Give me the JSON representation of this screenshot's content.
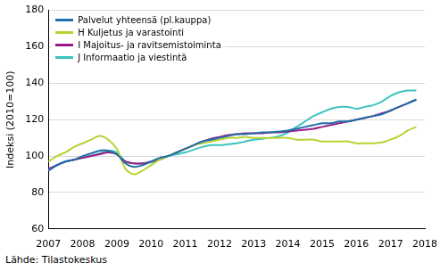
{
  "chart_data": {
    "type": "line",
    "y_label": "Indeksi (2010=100)",
    "source": "Lähde: Tilastokeskus",
    "x": [
      2007.0,
      2007.25,
      2007.5,
      2007.75,
      2008.0,
      2008.25,
      2008.5,
      2008.75,
      2009.0,
      2009.25,
      2009.5,
      2009.75,
      2010.0,
      2010.25,
      2010.5,
      2010.75,
      2011.0,
      2011.25,
      2011.5,
      2011.75,
      2012.0,
      2012.25,
      2012.5,
      2012.75,
      2013.0,
      2013.25,
      2013.5,
      2013.75,
      2014.0,
      2014.25,
      2014.5,
      2014.75,
      2015.0,
      2015.25,
      2015.5,
      2015.75,
      2016.0,
      2016.25,
      2016.5,
      2016.75,
      2017.0,
      2017.25,
      2017.5,
      2017.75
    ],
    "series": [
      {
        "name": "Palvelut yhteensä (pl.kauppa)",
        "color": "#1f6fa8",
        "values": [
          92,
          95,
          97,
          98,
          100,
          101.5,
          103,
          103,
          101,
          96,
          94,
          95,
          97,
          99,
          100,
          102,
          104,
          106,
          108,
          109,
          110,
          111,
          112,
          112,
          112.5,
          113,
          113,
          113.5,
          114,
          115,
          116,
          117,
          118,
          118,
          119,
          119,
          120,
          121,
          122,
          123,
          125,
          127,
          129,
          131
        ]
      },
      {
        "name": "H Kuljetus ja varastointi",
        "color": "#b8d234",
        "values": [
          97,
          100,
          102,
          105,
          107,
          109,
          111,
          109,
          104,
          93,
          90,
          92,
          95,
          98,
          100,
          102,
          104,
          106,
          107,
          108,
          109,
          110,
          110,
          110.5,
          110,
          110,
          110,
          110,
          110,
          109,
          109,
          109,
          108,
          108,
          108,
          108,
          107,
          107,
          107,
          107.5,
          109,
          111,
          114,
          116
        ]
      },
      {
        "name": "I Majoitus- ja ravitsemistoiminta",
        "color": "#9b1c8c",
        "values": [
          93,
          95,
          97,
          98,
          99,
          100,
          101,
          102,
          101,
          97,
          96,
          96,
          97,
          98,
          100,
          102,
          104,
          106,
          108,
          109.5,
          110.5,
          111.5,
          112,
          112.5,
          112.5,
          112.5,
          113,
          113,
          113.5,
          114,
          114.5,
          115,
          116,
          117,
          118,
          119,
          120,
          121,
          122,
          123.5,
          125,
          127,
          129,
          131
        ]
      },
      {
        "name": "J Informaatio ja viestintä",
        "color": "#3cc4c0",
        "values": [
          92,
          95,
          97,
          98,
          99,
          100,
          101.5,
          103,
          102,
          97,
          96,
          96,
          96.5,
          98,
          100,
          101,
          102,
          103.5,
          105,
          106,
          106,
          106.5,
          107,
          108,
          109,
          109.5,
          110,
          111,
          113,
          116,
          119,
          122,
          124,
          126,
          127,
          127,
          126,
          127,
          128,
          130,
          133,
          135,
          136,
          136
        ]
      }
    ],
    "xlim": [
      2007,
      2018
    ],
    "xticks": [
      2007,
      2008,
      2009,
      2010,
      2011,
      2012,
      2013,
      2014,
      2015,
      2016,
      2017,
      2018
    ],
    "ylim": [
      60,
      180
    ],
    "yticks": [
      60,
      80,
      100,
      120,
      140,
      160,
      180
    ],
    "grid": true,
    "legend": "upper left"
  }
}
